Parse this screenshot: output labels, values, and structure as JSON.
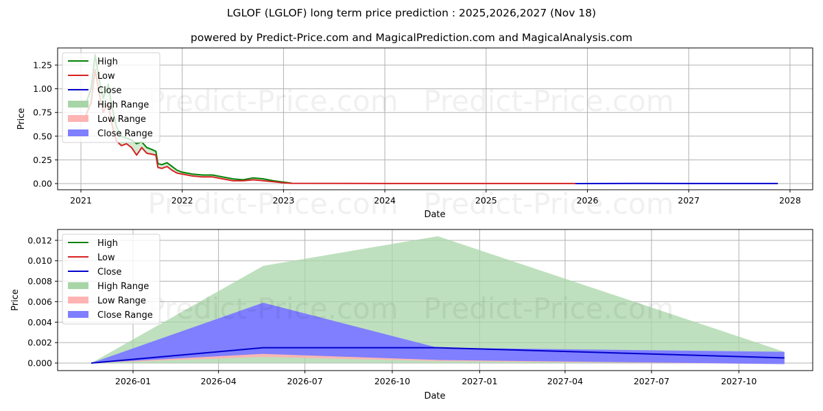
{
  "title": "LGLOF (LGLOF) long term price prediction : 2025,2026,2027 (Nov 18)",
  "subtitle": "powered by Predict-Price.com and MagicalPrediction.com and MagicalAnalysis.com",
  "watermark": "Predict-Price.com",
  "colors": {
    "high": "#008000",
    "low": "#d62020",
    "close": "#0000cc",
    "high_range": "#a8d5a8",
    "low_range": "#ffb3b3",
    "close_range": "#7f7fff",
    "grid": "#b0b0b0"
  },
  "legend": [
    "High",
    "Low",
    "Close",
    "High Range",
    "Low Range",
    "Close Range"
  ],
  "chart_data": [
    {
      "type": "line",
      "title": "LGLOF long term price history and prediction",
      "xlabel": "Date",
      "ylabel": "Price",
      "x_ticks": [
        "2021",
        "2022",
        "2023",
        "2024",
        "2025",
        "2026",
        "2027",
        "2028"
      ],
      "y_ticks": [
        "0.00",
        "0.25",
        "0.50",
        "0.75",
        "1.00",
        "1.25"
      ],
      "ylim": [
        -0.06,
        1.4
      ],
      "grid": true,
      "legend_position": "upper left",
      "series": [
        {
          "name": "High",
          "x": [
            2021.05,
            2021.1,
            2021.14,
            2021.18,
            2021.22,
            2021.27,
            2021.3,
            2021.35,
            2021.4,
            2021.45,
            2021.5,
            2021.55,
            2021.6,
            2021.65,
            2021.7,
            2021.74,
            2021.76,
            2021.8,
            2021.85,
            2021.9,
            2021.95,
            2022.0,
            2022.1,
            2022.2,
            2022.3,
            2022.4,
            2022.5,
            2022.6,
            2022.7,
            2022.8,
            2022.9,
            2023.0,
            2023.08
          ],
          "values": [
            0.85,
            1.0,
            1.36,
            1.1,
            0.9,
            1.05,
            0.85,
            0.6,
            0.5,
            0.48,
            0.46,
            0.42,
            0.44,
            0.38,
            0.36,
            0.34,
            0.21,
            0.2,
            0.22,
            0.18,
            0.14,
            0.12,
            0.1,
            0.09,
            0.09,
            0.07,
            0.05,
            0.04,
            0.06,
            0.05,
            0.03,
            0.015,
            0.005
          ]
        },
        {
          "name": "Low",
          "x": [
            2021.05,
            2021.1,
            2021.14,
            2021.18,
            2021.22,
            2021.27,
            2021.3,
            2021.35,
            2021.4,
            2021.45,
            2021.5,
            2021.55,
            2021.6,
            2021.65,
            2021.7,
            2021.74,
            2021.76,
            2021.8,
            2021.85,
            2021.9,
            2021.95,
            2022.0,
            2022.1,
            2022.2,
            2022.3,
            2022.4,
            2022.5,
            2022.6,
            2022.7,
            2022.8,
            2022.9,
            2023.0,
            2023.08,
            2024.0,
            2025.0,
            2025.88
          ],
          "values": [
            0.72,
            0.85,
            1.2,
            0.95,
            0.75,
            0.85,
            0.65,
            0.45,
            0.4,
            0.42,
            0.38,
            0.3,
            0.38,
            0.32,
            0.31,
            0.3,
            0.17,
            0.16,
            0.18,
            0.14,
            0.11,
            0.1,
            0.08,
            0.07,
            0.07,
            0.05,
            0.03,
            0.03,
            0.04,
            0.03,
            0.02,
            0.008,
            0.003,
            0.001,
            0.001,
            0.001
          ]
        },
        {
          "name": "Close",
          "x": [
            2025.88,
            2026.5,
            2027.0,
            2027.88
          ],
          "values": [
            0.0,
            0.0015,
            0.0012,
            0.0005
          ]
        }
      ]
    },
    {
      "type": "area",
      "title": "LGLOF price prediction range",
      "xlabel": "Date",
      "ylabel": "Price",
      "x_ticks": [
        "2026-01",
        "2026-04",
        "2026-07",
        "2026-10",
        "2027-01",
        "2027-04",
        "2027-07",
        "2027-10"
      ],
      "y_ticks": [
        "0.000",
        "0.002",
        "0.004",
        "0.006",
        "0.008",
        "0.010",
        "0.012"
      ],
      "ylim": [
        -0.0007,
        0.013
      ],
      "grid": true,
      "legend_position": "upper left",
      "x": [
        "2025-11-18",
        "2026-05-18",
        "2026-11-18",
        "2027-11-18"
      ],
      "series": [
        {
          "name": "High Range",
          "upper": [
            0.0,
            0.0095,
            0.0124,
            0.0011
          ],
          "lower": [
            0.0,
            0.0,
            0.0,
            0.0
          ]
        },
        {
          "name": "Close Range",
          "upper": [
            0.0,
            0.0059,
            0.0015,
            0.0011
          ],
          "lower": [
            0.0,
            0.0009,
            0.0003,
            -0.0001
          ]
        },
        {
          "name": "Low Range",
          "upper": [
            0.0,
            0.001,
            0.0004,
            0.0
          ],
          "lower": [
            0.0,
            0.0006,
            0.0002,
            -0.0001
          ]
        },
        {
          "name": "Close",
          "values": [
            0.0,
            0.0015,
            0.0015,
            0.0005
          ]
        }
      ]
    }
  ]
}
